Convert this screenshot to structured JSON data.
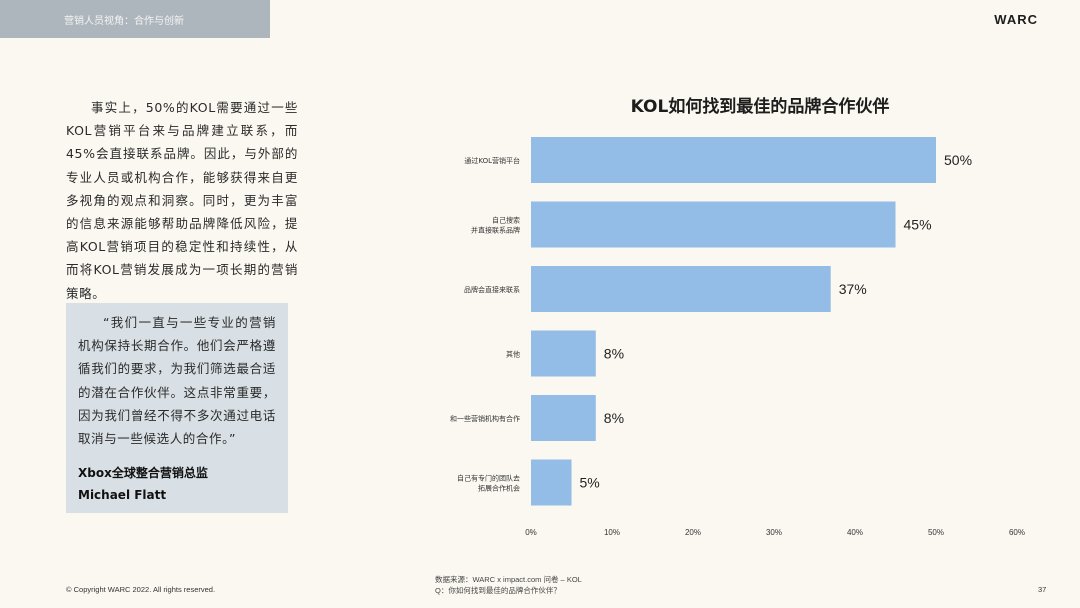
{
  "header": {
    "tab_label": "营销人员视角：合作与创新",
    "brand": "WARC"
  },
  "body_text": "事实上，50%的KOL需要通过一些KOL营销平台来与品牌建立联系，而45%会直接联系品牌。因此，与外部的专业人员或机构合作，能够获得来自更多视角的观点和洞察。同时，更为丰富的信息来源能够帮助品牌降低风险，提高KOL营销项目的稳定性和持续性，从而将KOL营销发展成为一项长期的营销策略。",
  "quote": {
    "text": "“我们一直与一些专业的营销机构保持长期合作。他们会严格遵循我们的要求，为我们筛选最合适的潜在合作伙伴。这点非常重要，因为我们曾经不得不多次通过电话取消与一些候选人的合作。”",
    "author_title": "Xbox全球整合营销总监",
    "author_name": "Michael Flatt"
  },
  "chart_data": {
    "type": "bar",
    "orientation": "horizontal",
    "title": "KOL如何找到最佳的品牌合作伙伴",
    "categories": [
      [
        "通过KOL营销平台"
      ],
      [
        "自己搜索",
        "并直接联系品牌"
      ],
      [
        "品牌会直接来联系"
      ],
      [
        "其他"
      ],
      [
        "和一些营销机构有合作"
      ],
      [
        "自己有专门的团队去",
        "拓展合作机会"
      ]
    ],
    "values": [
      50,
      45,
      37,
      8,
      8,
      5
    ],
    "value_labels": [
      "50%",
      "45%",
      "37%",
      "8%",
      "8%",
      "5%"
    ],
    "xlim": [
      0,
      60
    ],
    "xticks": [
      "0%",
      "10%",
      "20%",
      "30%",
      "40%",
      "50%",
      "60%"
    ],
    "bar_color": "#93bde6",
    "grid": false
  },
  "footer": {
    "copyright": "©  Copyright WARC 2022. All rights reserved.",
    "source_line1": "数据来源：WARC x impact.com 问卷 – KOL",
    "source_line2": "Q：你如何找到最佳的品牌合作伙伴？",
    "page_number": "37"
  }
}
